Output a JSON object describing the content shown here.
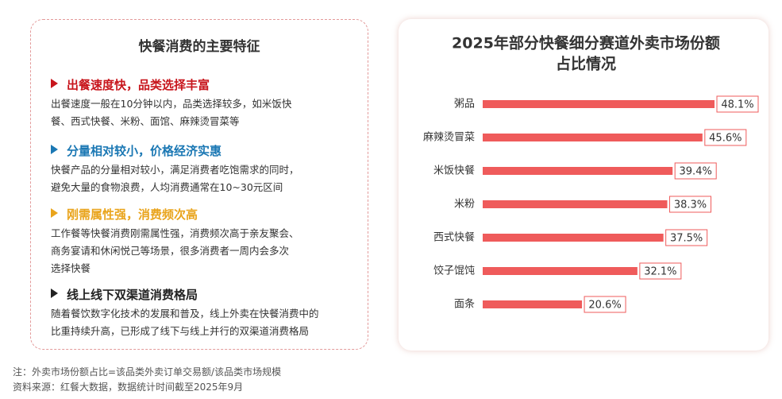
{
  "left_panel": {
    "title": "快餐消费的主要特征",
    "sections": [
      {
        "heading": "出餐速度快，品类选择丰富",
        "color": "#c8161d",
        "lines": [
          "出餐速度一般在10分钟以内，品类选择较多，如米饭快",
          "餐、西式快餐、米粉、面馆、麻辣烫冒菜等"
        ]
      },
      {
        "heading": "分量相对较小，价格经济实惠",
        "color": "#1b78b4",
        "lines": [
          "快餐产品的分量相对较小，满足消费者吃饱需求的同时，",
          "避免大量的食物浪费，人均消费通常在10~30元区间"
        ]
      },
      {
        "heading": "刚需属性强，消费频次高",
        "color": "#e9a41c",
        "lines": [
          "工作餐等快餐消费刚需属性强，消费频次高于亲友聚会、",
          "商务宴请和休闲悦己等场景，很多消费者一周内会多次",
          "选择快餐"
        ]
      },
      {
        "heading": "线上线下双渠道消费格局",
        "color": "#222222",
        "lines": [
          "随着餐饮数字化技术的发展和普及，线上外卖在快餐消费中的",
          "比重持续升高，已形成了线下与线上并行的双渠道消费格局"
        ]
      }
    ]
  },
  "chart_data": {
    "type": "bar",
    "orientation": "horizontal",
    "title": [
      "2025年部分快餐细分赛道外卖市场份额",
      "占比情况"
    ],
    "categories": [
      "粥品",
      "麻辣烫冒菜",
      "米饭快餐",
      "米粉",
      "西式快餐",
      "饺子馄饨",
      "面条"
    ],
    "values": [
      48.1,
      45.6,
      39.4,
      38.3,
      37.5,
      32.1,
      20.6
    ],
    "value_labels": [
      "48.1%",
      "45.6%",
      "39.4%",
      "38.3%",
      "37.5%",
      "32.1%",
      "20.6%"
    ],
    "color": "#ef5b5b"
  },
  "footer": {
    "note": "注：外卖市场份额占比=该品类外卖订单交易额/该品类市场规模",
    "source": "资料来源：红餐大数据，数据统计时间截至2025年9月"
  }
}
